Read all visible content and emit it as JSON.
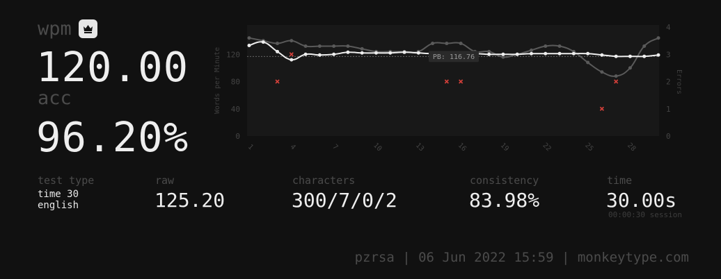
{
  "result": {
    "wpm_label": "wpm",
    "wpm_value": "120.00",
    "acc_label": "acc",
    "acc_value": "96.20%"
  },
  "stats": {
    "test_type_label": "test type",
    "test_type_line1": "time 30",
    "test_type_line2": "english",
    "raw_label": "raw",
    "raw_value": "125.20",
    "characters_label": "characters",
    "characters_value": "300/7/0/2",
    "consistency_label": "consistency",
    "consistency_value": "83.98%",
    "time_label": "time",
    "time_value": "30.00s",
    "session_time": "00:00:30 session"
  },
  "footer": {
    "text": "pzrsa | 06 Jun 2022 15:59 | monkeytype.com"
  },
  "colors": {
    "background": "#111111",
    "text": "#eeeeee",
    "muted": "#4b4b4b",
    "wpm_line": "#eeeeee",
    "raw_line": "#5a5a5a",
    "error_marker": "#d4403a"
  },
  "chart_data": {
    "type": "line",
    "ylabel": "Words per Minute",
    "y2label": "Errors",
    "ylim": [
      0,
      160
    ],
    "y2lim": [
      0,
      4
    ],
    "yticks": [
      "0",
      "40",
      "80",
      "120"
    ],
    "y2ticks": [
      "0",
      "1",
      "2",
      "3",
      "4"
    ],
    "x": [
      1,
      2,
      3,
      4,
      5,
      6,
      7,
      8,
      9,
      10,
      11,
      12,
      13,
      14,
      15,
      16,
      17,
      18,
      19,
      20,
      21,
      22,
      23,
      24,
      25,
      26,
      27,
      28,
      29,
      30
    ],
    "xtick_labels": [
      "1",
      "4",
      "7",
      "10",
      "13",
      "16",
      "19",
      "22",
      "25",
      "28"
    ],
    "pb_label": "PB: 116.76",
    "pb_value": 116.76,
    "series": [
      {
        "name": "wpm",
        "values": [
          133,
          138,
          124,
          112,
          120,
          119,
          120,
          123,
          122,
          122,
          122,
          123,
          122,
          121,
          121,
          121,
          121,
          120,
          120,
          120,
          121,
          121,
          121,
          121,
          121,
          119,
          117,
          117,
          117,
          119
        ]
      },
      {
        "name": "raw",
        "values": [
          144,
          140,
          136,
          140,
          132,
          132,
          132,
          132,
          128,
          124,
          124,
          124,
          124,
          136,
          136,
          136,
          124,
          124,
          116,
          120,
          126,
          132,
          132,
          124,
          108,
          94,
          88,
          100,
          132,
          144
        ]
      },
      {
        "name": "errors",
        "x": [
          3,
          4,
          15,
          16,
          26,
          27
        ],
        "values": [
          2,
          3,
          2,
          2,
          1,
          2
        ]
      }
    ]
  }
}
